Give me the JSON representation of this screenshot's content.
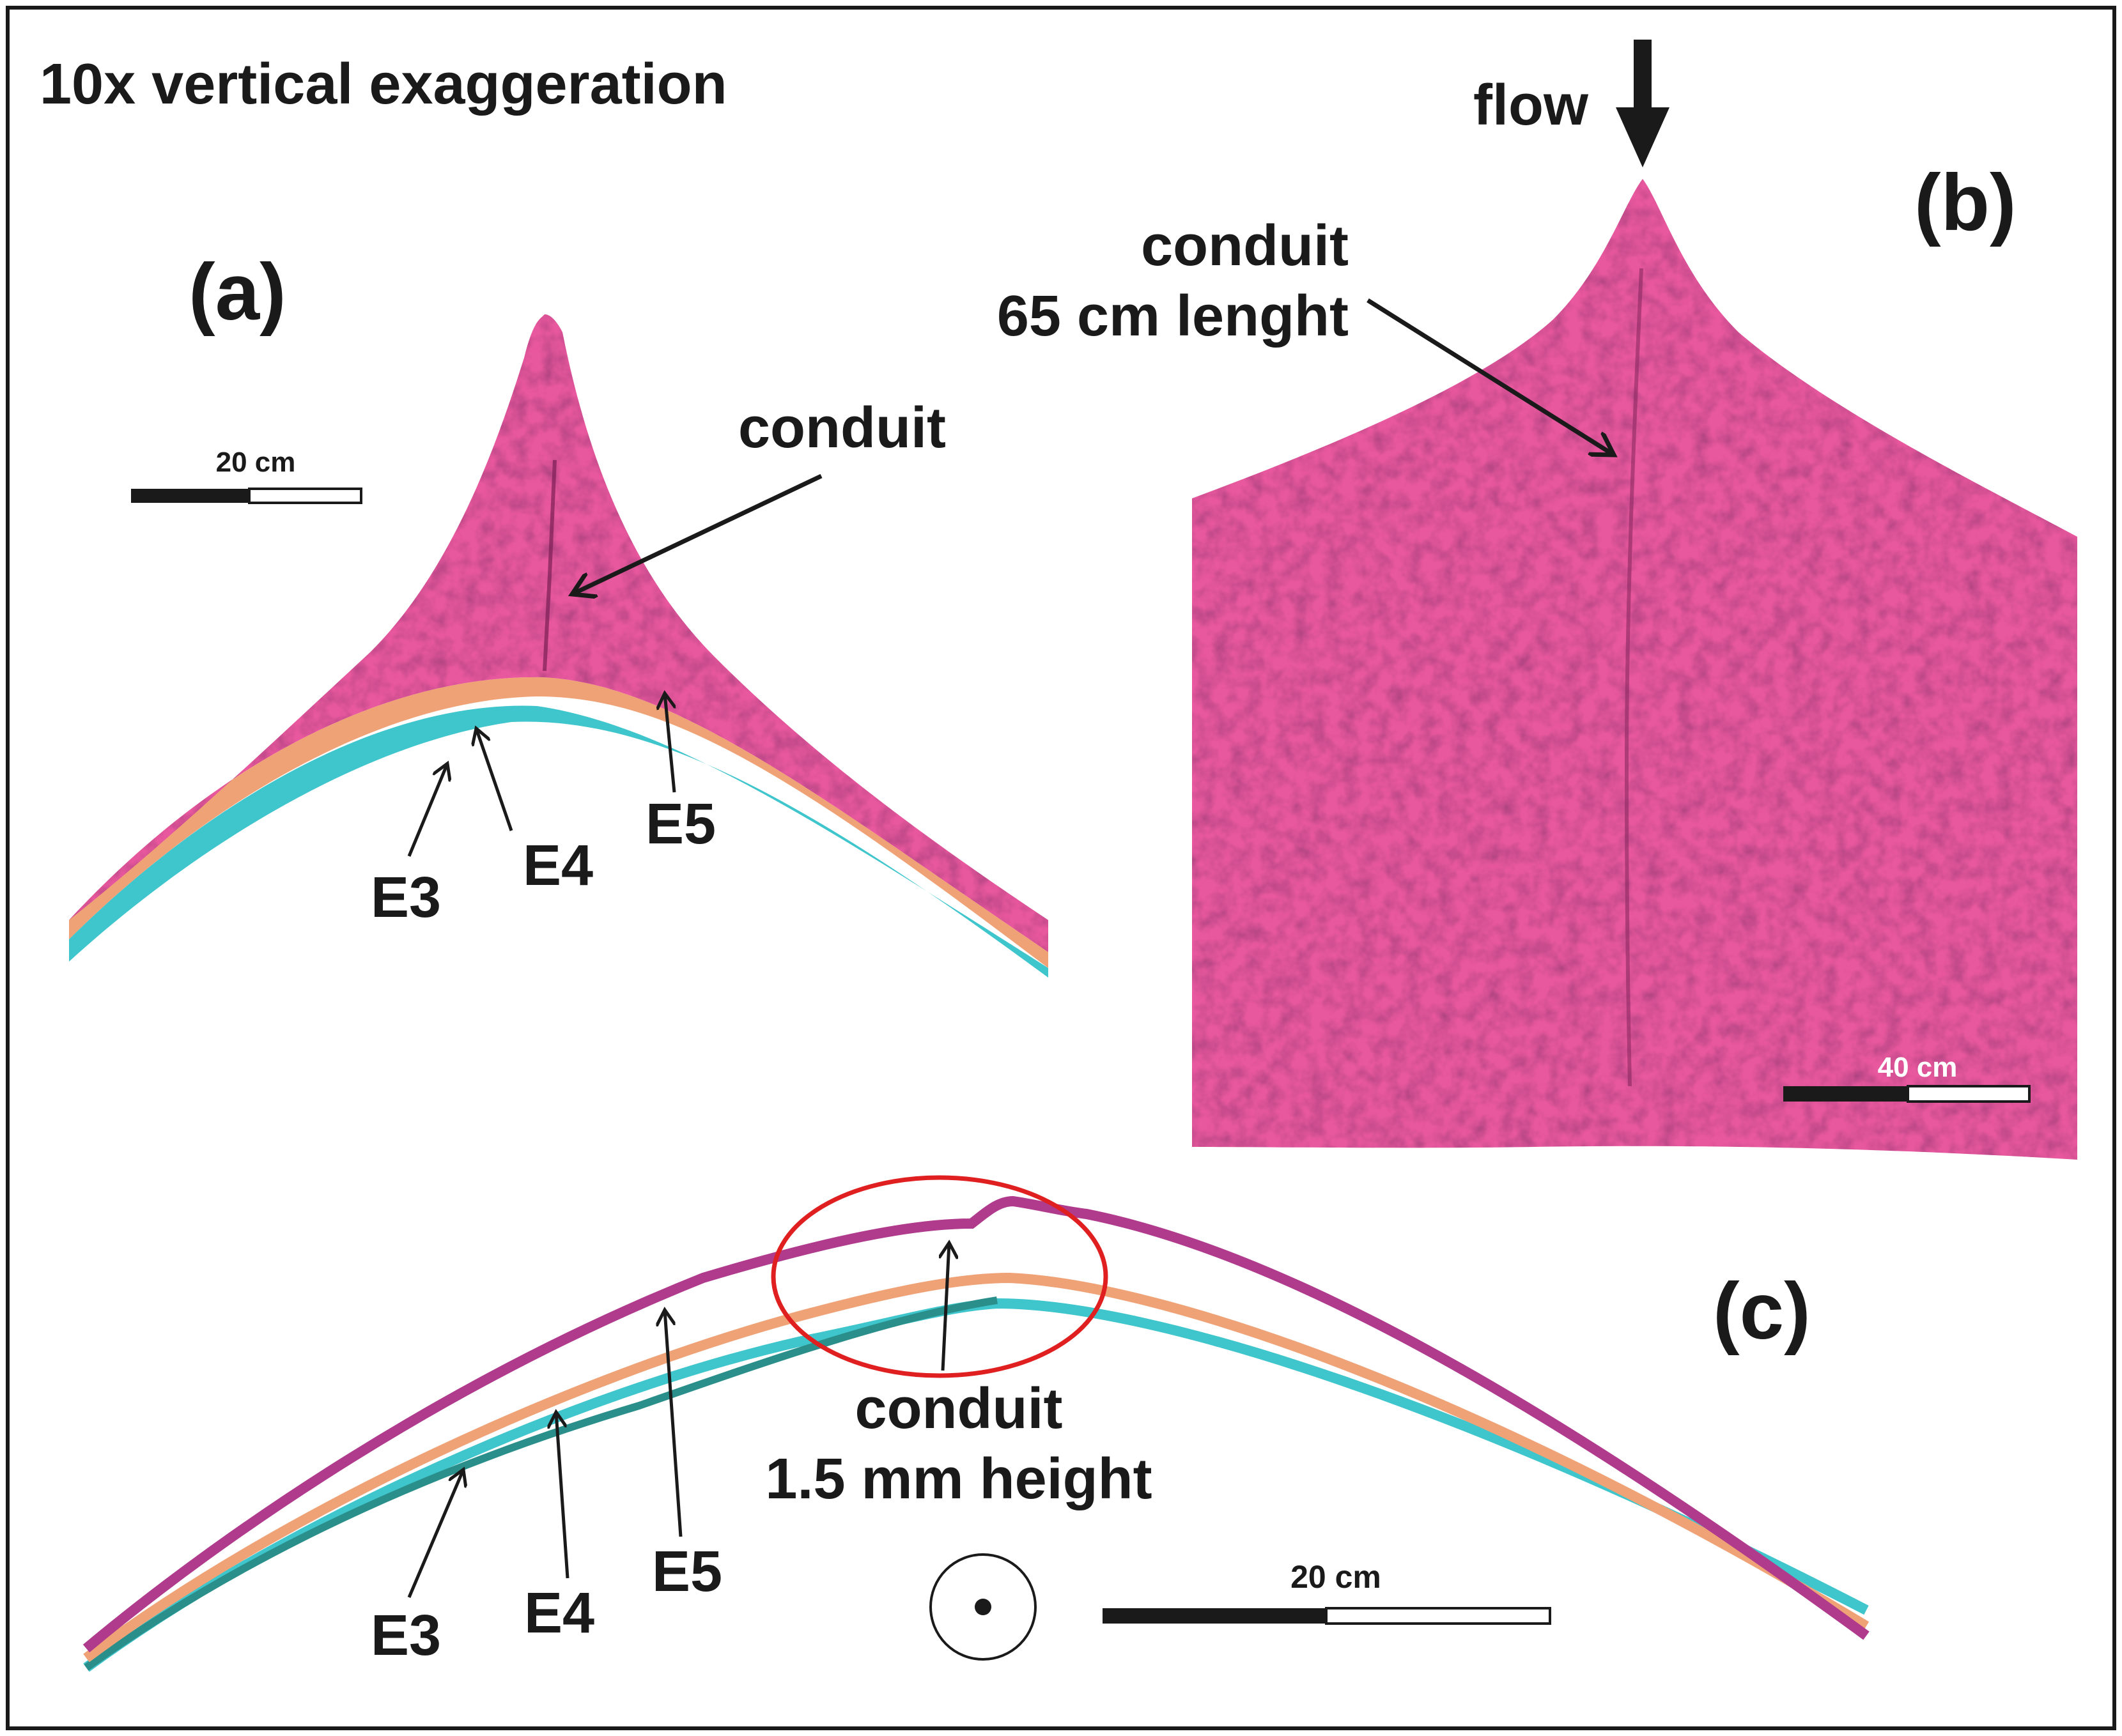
{
  "header": {
    "title": "10x vertical exaggeration"
  },
  "panel_a": {
    "label": "(a)",
    "conduit_label": "conduit",
    "scale_label": "20 cm",
    "events": [
      "E3",
      "E4",
      "E5"
    ]
  },
  "panel_b": {
    "label": "(b)",
    "flow_label": "flow",
    "conduit_line1": "conduit",
    "conduit_line2": "65 cm lenght",
    "scale_label": "40 cm"
  },
  "panel_c": {
    "label": "(c)",
    "conduit_line1": "conduit",
    "conduit_line2": "1.5 mm height",
    "scale_label": "20 cm",
    "events": [
      "E3",
      "E4",
      "E5"
    ]
  },
  "colors": {
    "pink": "#e8589e",
    "magenta": "#b03a8c",
    "orange": "#f0a277",
    "cyan": "#3fc5cc",
    "teal": "#2a8f8a",
    "red": "#e02020",
    "ink": "#1a1a1a"
  }
}
